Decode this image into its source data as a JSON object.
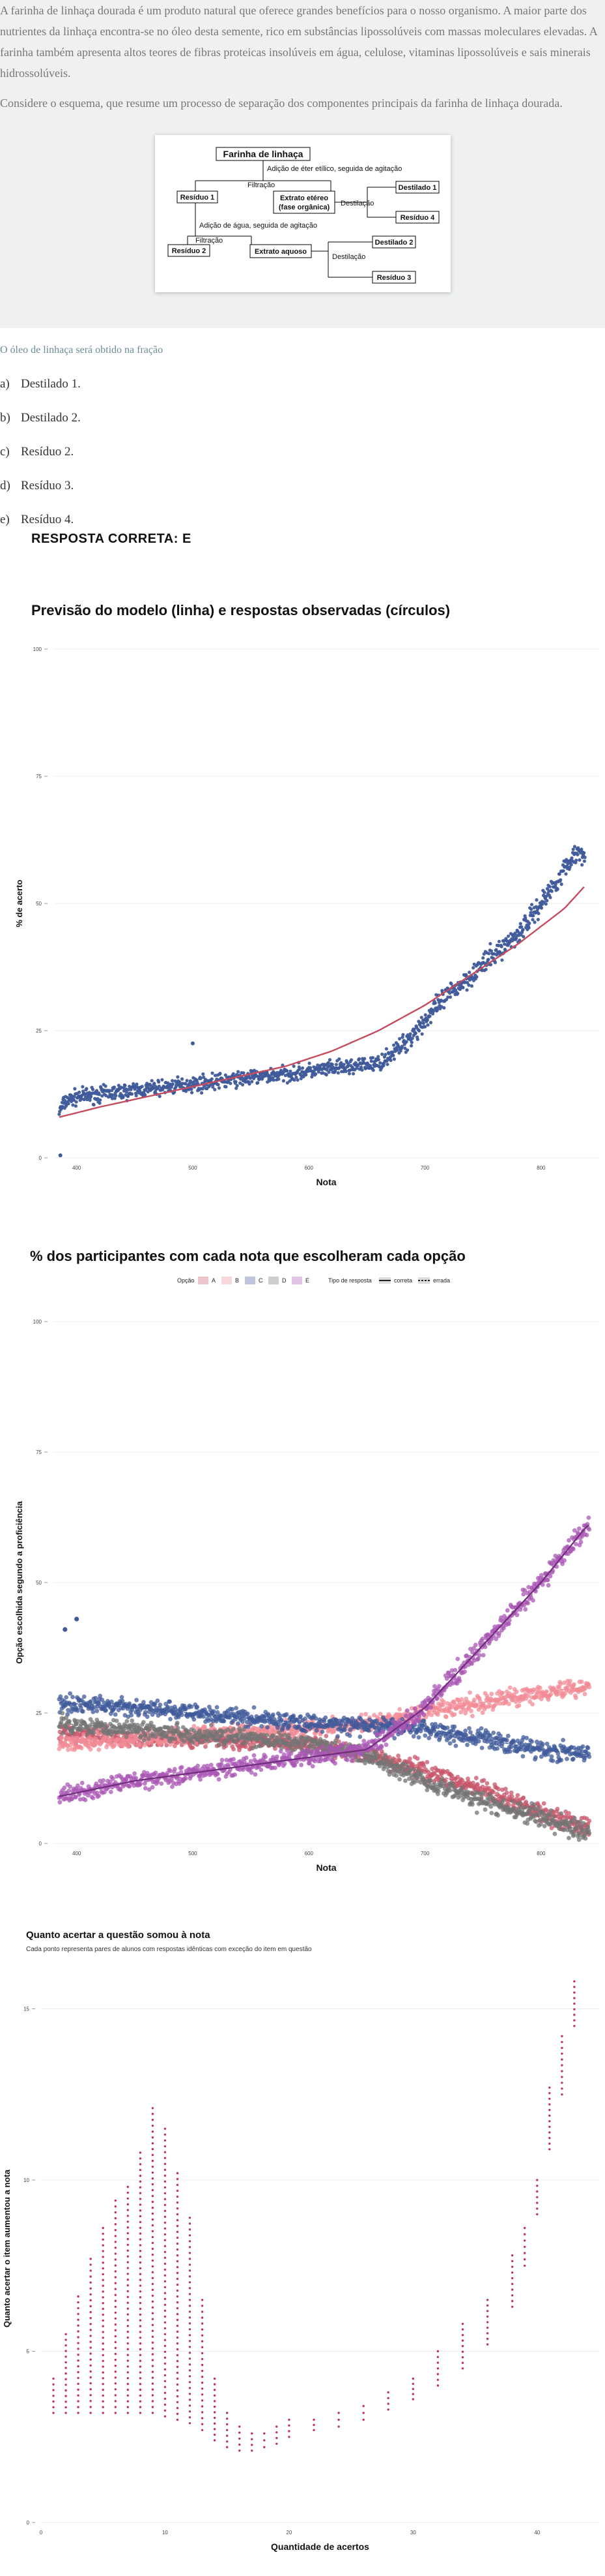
{
  "question": {
    "paragraph1": "A farinha de linhaça dourada é um produto natural que oferece grandes benefícios para o nosso organismo. A maior parte dos nutrientes da linhaça encontra-se no óleo desta semente, rico em substâncias lipossolúveis com massas moleculares elevadas. A farinha também apresenta altos teores de fibras proteicas insolúveis em água, celulose, vitaminas lipossolúveis e sais minerais hidrossolúveis.",
    "paragraph2": "Considere o esquema, que resume um processo de separação dos componentes principais da farinha de linhaça dourada.",
    "prompt": "O óleo de linhaça será obtido na fração",
    "options": [
      {
        "letter": "a)",
        "text": "Destilado 1."
      },
      {
        "letter": "b)",
        "text": "Destilado 2."
      },
      {
        "letter": "c)",
        "text": "Resíduo 2."
      },
      {
        "letter": "d)",
        "text": "Resíduo 3."
      },
      {
        "letter": "e)",
        "text": "Resíduo 4."
      }
    ],
    "answer": "RESPOSTA CORRETA: E"
  },
  "scheme": {
    "root": "Farinha de linhaça",
    "step1": "Adição de éter etílico, seguida de agitação",
    "filtracao1": "Filtração",
    "residuo1": "Resíduo 1",
    "extrato_etereo_l1": "Extrato etéreo",
    "extrato_etereo_l2": "(fase orgânica)",
    "destilacao1": "Destilação",
    "destilado1": "Destilado 1",
    "residuo4": "Resíduo 4",
    "step2": "Adição de água, seguida de agitação",
    "filtracao2": "Filtração",
    "residuo2": "Resíduo 2",
    "extrato_aquoso": "Extrato aquoso",
    "destilacao2": "Destilação",
    "destilado2": "Destilado 2",
    "residuo3": "Resíduo 3"
  },
  "chart_data": [
    {
      "type": "scatter",
      "title": "Previsão do modelo (linha) e respostas observadas (círculos)",
      "xlabel": "Nota",
      "ylabel": "% de acerto",
      "xlim": [
        380,
        850
      ],
      "ylim": [
        0,
        100
      ],
      "xticks": [
        "400",
        "500",
        "600",
        "700",
        "800"
      ],
      "yticks": [
        "0",
        "25",
        "50",
        "75",
        "100"
      ],
      "series": [
        {
          "kind": "observed",
          "color": "#3f5a9a",
          "x": [
            385,
            390,
            400,
            420,
            440,
            460,
            480,
            500,
            520,
            540,
            560,
            580,
            600,
            620,
            640,
            660,
            680,
            700,
            720,
            740,
            760,
            780,
            800,
            830
          ],
          "y": [
            9,
            11,
            12,
            12.5,
            13,
            13.5,
            14,
            14.5,
            15,
            15.5,
            16,
            16.5,
            17,
            17.5,
            18,
            18.5,
            22,
            27,
            32,
            36,
            40,
            44,
            50,
            60
          ]
        },
        {
          "kind": "model",
          "color": "#c54b5e",
          "x": [
            385,
            420,
            460,
            500,
            540,
            580,
            620,
            660,
            700,
            740,
            780,
            820,
            840
          ],
          "y": [
            8,
            10,
            12,
            14,
            16,
            18,
            21,
            25,
            30,
            36,
            42,
            49,
            54
          ]
        }
      ]
    },
    {
      "type": "scatter",
      "title": "% dos participantes com cada nota que escolheram cada opção",
      "xlabel": "Nota",
      "ylabel": "Opção escolhida segundo a proficiência",
      "xlim": [
        380,
        850
      ],
      "ylim": [
        0,
        100
      ],
      "xticks": [
        "400",
        "500",
        "600",
        "700",
        "800"
      ],
      "yticks": [
        "0",
        "25",
        "50",
        "75",
        "100"
      ],
      "legend": {
        "opcao_label": "Opção",
        "tipo_label": "Tipo de resposta",
        "correta": "correta",
        "errada": "errada",
        "placement": "top"
      },
      "series": [
        {
          "name": "A",
          "color": "#c8566a",
          "correct": false,
          "x": [
            385,
            450,
            500,
            550,
            600,
            650,
            700,
            750,
            800,
            840
          ],
          "y": [
            21,
            20,
            20,
            19.5,
            19,
            17,
            14,
            10,
            6,
            3
          ]
        },
        {
          "name": "B",
          "color": "#f28b96",
          "correct": false,
          "x": [
            385,
            450,
            500,
            550,
            600,
            650,
            700,
            750,
            800,
            840
          ],
          "y": [
            19,
            20,
            21,
            21.5,
            22,
            23,
            25,
            27,
            29,
            30
          ]
        },
        {
          "name": "C",
          "color": "#3f5a9a",
          "correct": false,
          "x": [
            385,
            450,
            500,
            550,
            600,
            650,
            700,
            750,
            800,
            840
          ],
          "y": [
            27,
            26,
            25,
            24,
            23,
            22.5,
            22,
            20,
            18,
            17
          ]
        },
        {
          "name": "D",
          "color": "#747474",
          "correct": false,
          "x": [
            385,
            450,
            500,
            550,
            600,
            650,
            700,
            750,
            800,
            840
          ],
          "y": [
            23,
            22,
            21,
            20,
            19,
            17,
            12,
            8,
            5,
            2
          ]
        },
        {
          "name": "E",
          "color": "#a957b4",
          "correct": true,
          "x": [
            385,
            450,
            500,
            550,
            600,
            650,
            700,
            750,
            800,
            840
          ],
          "y": [
            9,
            12,
            13.5,
            15,
            16.5,
            18,
            26,
            38,
            50,
            61
          ]
        }
      ]
    },
    {
      "type": "scatter",
      "title": "Quanto acertar a questão somou à nota",
      "subtitle": "Cada ponto representa pares de alunos com respostas idênticas com exceção do item em questão",
      "xlabel": "Quantidade de acertos",
      "ylabel": "Quanto acertar o item aumentou a nota",
      "xlim": [
        0,
        45
      ],
      "ylim": [
        0,
        16
      ],
      "xticks": [
        "0",
        "10",
        "20",
        "30",
        "40"
      ],
      "yticks": [
        "0",
        "5",
        "10",
        "15"
      ],
      "series": [
        {
          "color": "#c0384f",
          "x": [
            1,
            2,
            3,
            4,
            5,
            6,
            7,
            8,
            9,
            10,
            11,
            12,
            13,
            14,
            15,
            16,
            17,
            18,
            19,
            20,
            22,
            24,
            26,
            28,
            30,
            32,
            34,
            36,
            38,
            39,
            40,
            41,
            42,
            43
          ],
          "y_min": [
            3.2,
            3.2,
            3.2,
            3.2,
            3.2,
            3.2,
            3.2,
            3.2,
            3.2,
            3.1,
            3.0,
            2.9,
            2.7,
            2.4,
            2.2,
            2.1,
            2.1,
            2.2,
            2.3,
            2.5,
            2.7,
            2.8,
            3.0,
            3.3,
            3.6,
            4.0,
            4.5,
            5.2,
            6.3,
            7.5,
            9.0,
            10.9,
            12.5,
            14.5
          ],
          "y_max": [
            4.2,
            5.5,
            6.6,
            7.7,
            8.6,
            9.4,
            9.8,
            10.8,
            12.1,
            11.5,
            10.2,
            8.9,
            6.5,
            4.2,
            3.2,
            2.8,
            2.6,
            2.6,
            2.8,
            3.0,
            3.0,
            3.2,
            3.4,
            3.8,
            4.2,
            5.0,
            5.8,
            6.5,
            7.8,
            8.6,
            10.0,
            12.7,
            14.2,
            15.8
          ]
        }
      ]
    }
  ]
}
